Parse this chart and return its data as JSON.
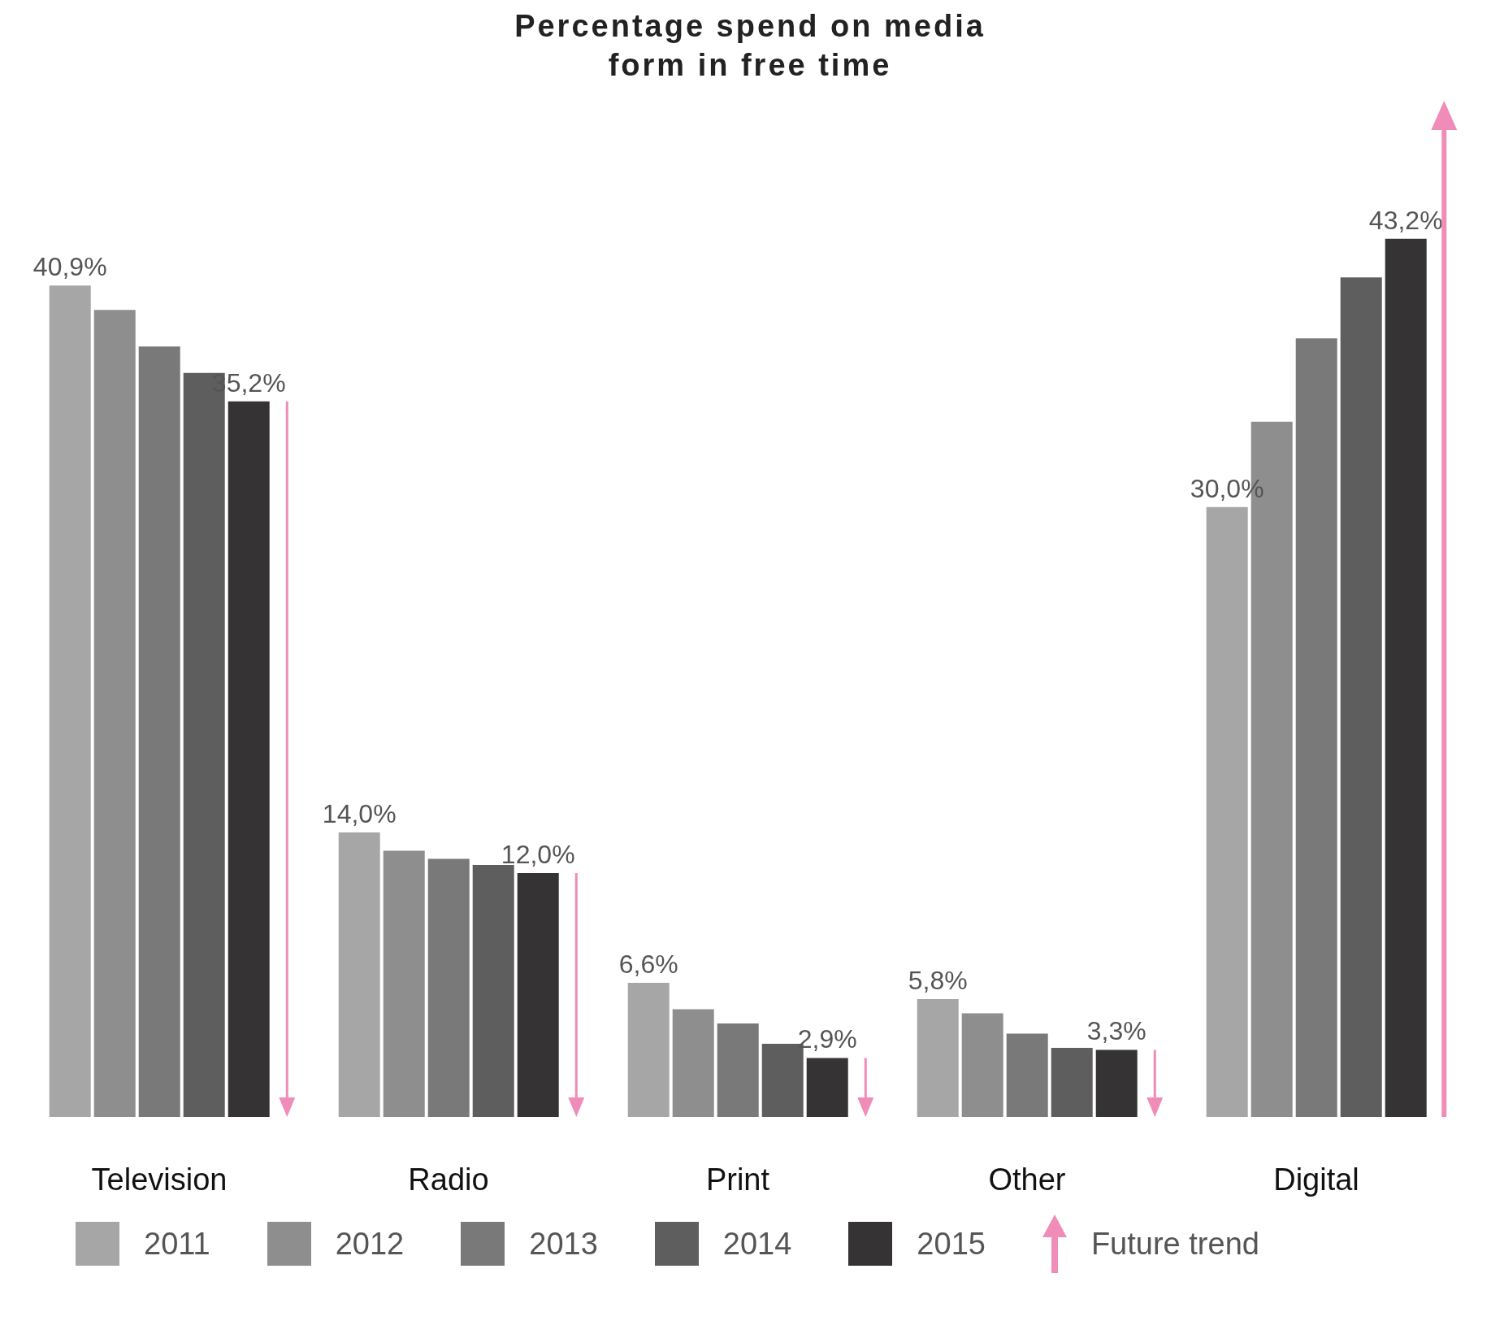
{
  "chart_data": {
    "type": "bar",
    "title": "Percentage spend on media form in free time",
    "categories": [
      "Television",
      "Radio",
      "Print",
      "Other",
      "Digital"
    ],
    "series": [
      {
        "name": "2011",
        "color": "#a6a6a6",
        "values": [
          40.9,
          14.0,
          6.6,
          5.8,
          30.0
        ],
        "value_labels": [
          "40,9%",
          "14,0%",
          "6,6%",
          "5,8%",
          "30,0%"
        ]
      },
      {
        "name": "2012",
        "color": "#8f8e8f",
        "values": [
          39.7,
          13.1,
          5.3,
          5.1,
          34.2
        ],
        "value_labels": [
          null,
          null,
          null,
          null,
          null
        ]
      },
      {
        "name": "2013",
        "color": "#7a797a",
        "values": [
          37.9,
          12.7,
          4.6,
          4.1,
          38.3
        ],
        "value_labels": [
          null,
          null,
          null,
          null,
          null
        ]
      },
      {
        "name": "2014",
        "color": "#5f5e5f",
        "values": [
          36.6,
          12.4,
          3.6,
          3.4,
          41.3
        ],
        "value_labels": [
          null,
          null,
          null,
          null,
          null
        ]
      },
      {
        "name": "2015",
        "color": "#363334",
        "values": [
          35.2,
          12.0,
          2.9,
          3.3,
          43.2
        ],
        "value_labels": [
          "35,2%",
          "12,0%",
          "2,9%",
          "3,3%",
          "43,2%"
        ]
      }
    ],
    "legend": "bottom",
    "annotations": [
      "Future trend"
    ]
  }
}
